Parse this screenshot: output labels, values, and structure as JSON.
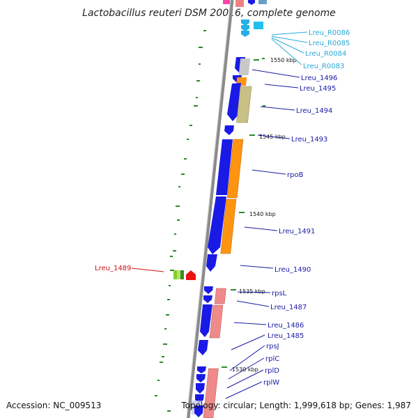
{
  "title": "Lactobacillus reuteri DSM 20016, complete genome",
  "accession": "Accession: NC_009513",
  "summary": "Topology: circular; Length: 1,999,618 bp; Genes: 1,987",
  "colors": {
    "cds": "#1a1ae6",
    "label_blue": "#1a1aa6",
    "label_cyan": "#2aa9d8",
    "label_red": "#cc1111",
    "orange": "#ff9411",
    "khaki": "#c8c084",
    "pink": "#ee8a8a",
    "gray": "#c8c8c8",
    "skew": "#2a8a2a",
    "backbone": "#8a8a8a"
  },
  "ticks": [
    {
      "label": "1550 kbp"
    },
    {
      "label": "1545 kbp"
    },
    {
      "label": "1540 kbp"
    },
    {
      "label": "1535 kbp"
    },
    {
      "label": "1530 kbp"
    }
  ],
  "genes": [
    {
      "label": "Lreu_R0086",
      "color": "cyan"
    },
    {
      "label": "Lreu_R0085",
      "color": "cyan"
    },
    {
      "label": "Lreu_R0084",
      "color": "cyan"
    },
    {
      "label": "Lreu_R0083",
      "color": "cyan"
    },
    {
      "label": "Lreu_1496",
      "color": "blue"
    },
    {
      "label": "Lreu_1495",
      "color": "blue"
    },
    {
      "label": "Lreu_1494",
      "color": "blue"
    },
    {
      "label": "Lreu_1493",
      "color": "blue"
    },
    {
      "label": "rpoB",
      "color": "blue"
    },
    {
      "label": "Lreu_1491",
      "color": "blue"
    },
    {
      "label": "Lreu_1490",
      "color": "blue"
    },
    {
      "label": "Lreu_1489",
      "color": "red"
    },
    {
      "label": "rpsL",
      "color": "blue"
    },
    {
      "label": "Lreu_1487",
      "color": "blue"
    },
    {
      "label": "Lreu_1486",
      "color": "blue"
    },
    {
      "label": "Lreu_1485",
      "color": "blue"
    },
    {
      "label": "rpsJ",
      "color": "blue"
    },
    {
      "label": "rplC",
      "color": "blue"
    },
    {
      "label": "rplD",
      "color": "blue"
    },
    {
      "label": "rplW",
      "color": "blue"
    }
  ]
}
